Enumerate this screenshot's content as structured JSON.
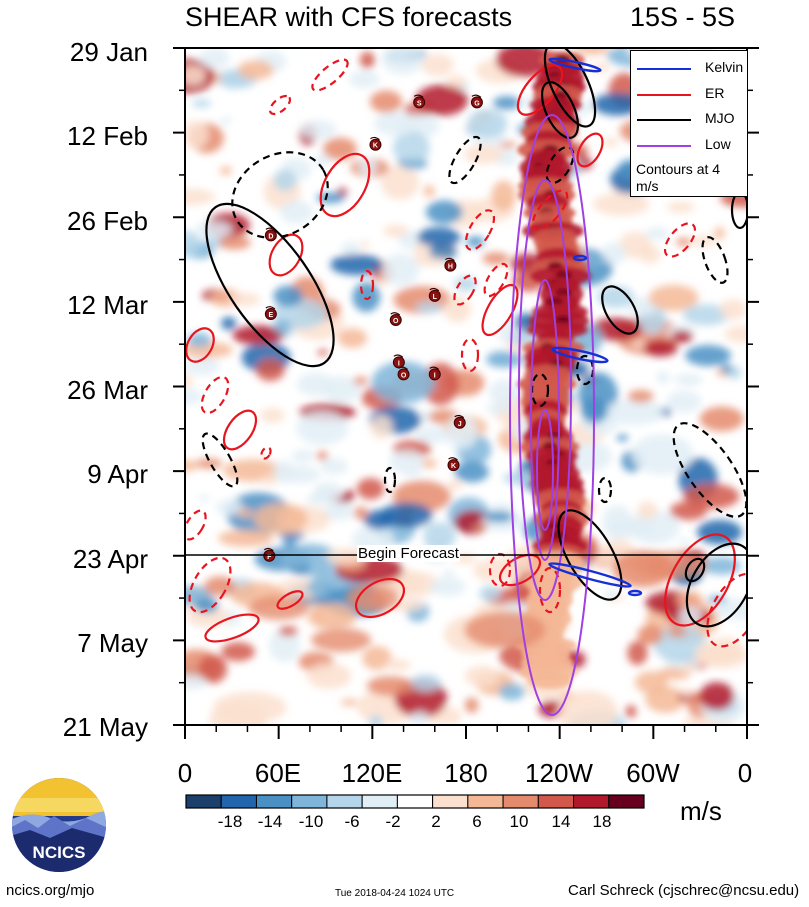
{
  "title": {
    "left": "SHEAR with CFS forecasts",
    "right": "15S - 5S"
  },
  "chart_data": {
    "type": "heatmap",
    "title": "SHEAR with CFS forecasts",
    "subtitle": "15S - 5S",
    "x_ticks": [
      "0",
      "60E",
      "120E",
      "180",
      "120W",
      "60W",
      "0"
    ],
    "x_range_deg_east": [
      0,
      360
    ],
    "y_ticks": [
      "29 Jan",
      "12 Feb",
      "26 Feb",
      "12 Mar",
      "26 Mar",
      "9 Apr",
      "23 Apr",
      "7 May",
      "21 May"
    ],
    "y_range": [
      "29 Jan",
      "21 May"
    ],
    "forecast_begin": "23 Apr",
    "forecast_label": "Begin Forecast",
    "colorbar": {
      "units": "m/s",
      "labels": [
        "-18",
        "-14",
        "-10",
        "-6",
        "-2",
        "2",
        "6",
        "10",
        "14",
        "18"
      ],
      "colors": [
        "#1d3f6b",
        "#2166ac",
        "#4a90c4",
        "#7fb5d9",
        "#b5d6ea",
        "#e2eef6",
        "#ffffff",
        "#fbe0cf",
        "#f4b896",
        "#e58b6d",
        "#d1584b",
        "#b2182b",
        "#67001f"
      ]
    },
    "legend": {
      "items": [
        {
          "label": "Kelvin",
          "color": "#1530d6"
        },
        {
          "label": "ER",
          "color": "#e8141e"
        },
        {
          "label": "MJO",
          "color": "#000000"
        },
        {
          "label": "Low",
          "color": "#a040e0"
        }
      ],
      "note": "Contours at 4 m/s"
    },
    "storm_markers": [
      {
        "label": "S",
        "lon": 150,
        "date": "7 Feb"
      },
      {
        "label": "G",
        "lon": 187,
        "date": "7 Feb"
      },
      {
        "label": "K",
        "lon": 122,
        "date": "14 Feb"
      },
      {
        "label": "D",
        "lon": 55,
        "date": "1 Mar"
      },
      {
        "label": "H",
        "lon": 170,
        "date": "6 Mar"
      },
      {
        "label": "L",
        "lon": 160,
        "date": "11 Mar"
      },
      {
        "label": "E",
        "lon": 55,
        "date": "14 Mar"
      },
      {
        "label": "O",
        "lon": 135,
        "date": "15 Mar"
      },
      {
        "label": "I",
        "lon": 137,
        "date": "22 Mar"
      },
      {
        "label": "O",
        "lon": 140,
        "date": "24 Mar"
      },
      {
        "label": "I",
        "lon": 160,
        "date": "24 Mar"
      },
      {
        "label": "J",
        "lon": 176,
        "date": "1 Apr"
      },
      {
        "label": "K",
        "lon": 172,
        "date": "8 Apr"
      },
      {
        "label": "F",
        "lon": 54,
        "date": "23 Apr"
      }
    ]
  },
  "footer": {
    "left": "ncics.org/mjo",
    "mid": "Tue 2018-04-24 1024 UTC",
    "right": "Carl Schreck (cjschrec@ncsu.edu)",
    "logo_text": "NCICS"
  }
}
